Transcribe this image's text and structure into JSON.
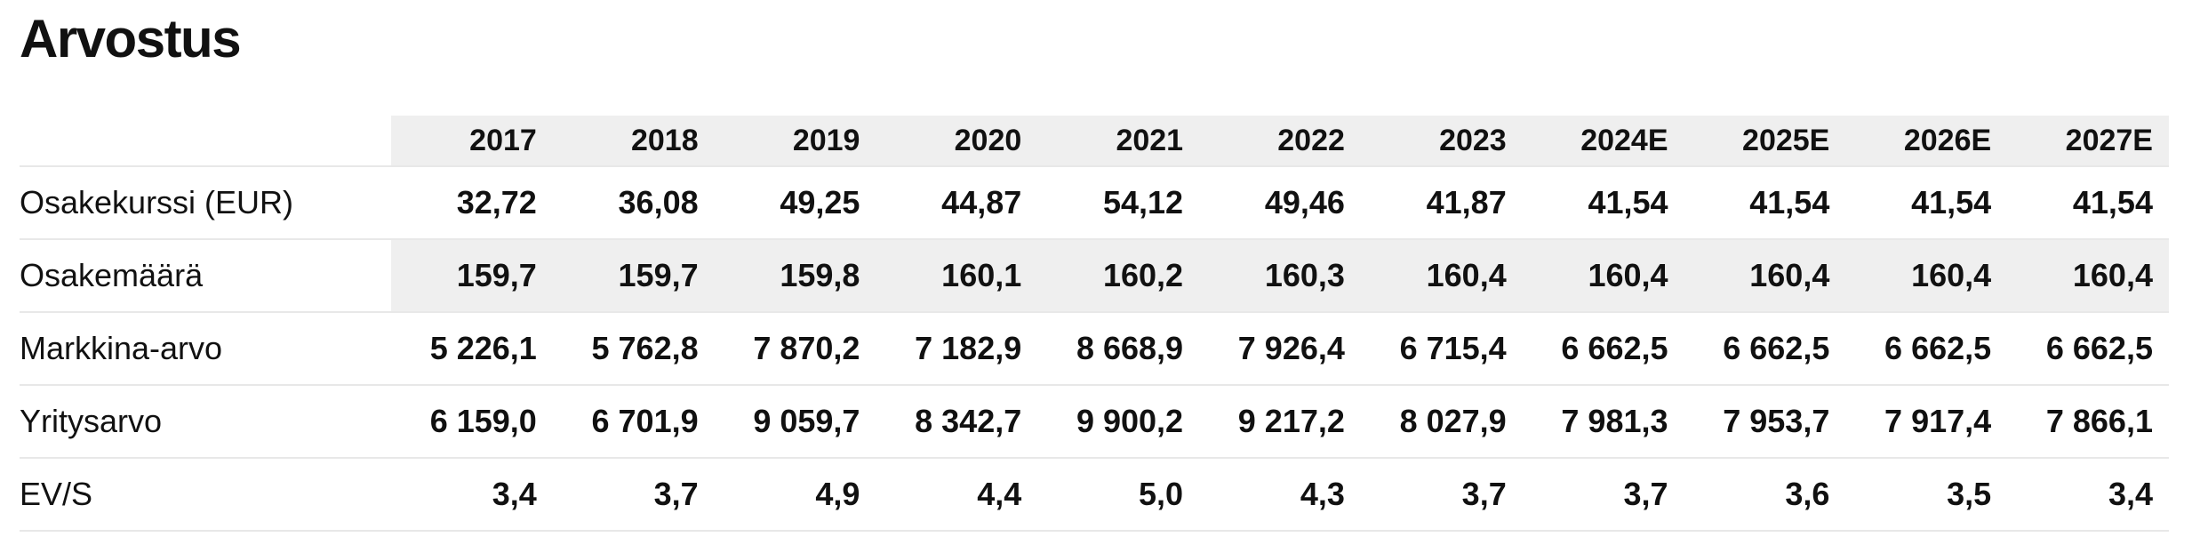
{
  "chart_data": {
    "type": "table",
    "title": "Arvostus",
    "categories": [
      "2017",
      "2018",
      "2019",
      "2020",
      "2021",
      "2022",
      "2023",
      "2024E",
      "2025E",
      "2026E",
      "2027E"
    ],
    "rows": [
      {
        "label": "Osakekurssi (EUR)",
        "highlighted": false,
        "values": [
          "32,72",
          "36,08",
          "49,25",
          "44,87",
          "54,12",
          "49,46",
          "41,87",
          "41,54",
          "41,54",
          "41,54",
          "41,54"
        ]
      },
      {
        "label": "Osakemäärä",
        "highlighted": true,
        "values": [
          "159,7",
          "159,7",
          "159,8",
          "160,1",
          "160,2",
          "160,3",
          "160,4",
          "160,4",
          "160,4",
          "160,4",
          "160,4"
        ]
      },
      {
        "label": "Markkina-arvo",
        "highlighted": false,
        "values": [
          "5 226,1",
          "5 762,8",
          "7 870,2",
          "7 182,9",
          "8 668,9",
          "7 926,4",
          "6 715,4",
          "6 662,5",
          "6 662,5",
          "6 662,5",
          "6 662,5"
        ]
      },
      {
        "label": "Yritysarvo",
        "highlighted": false,
        "values": [
          "6 159,0",
          "6 701,9",
          "9 059,7",
          "8 342,7",
          "9 900,2",
          "9 217,2",
          "8 027,9",
          "7 981,3",
          "7 953,7",
          "7 917,4",
          "7 866,1"
        ]
      },
      {
        "label": "EV/S",
        "highlighted": false,
        "values": [
          "3,4",
          "3,7",
          "4,9",
          "4,4",
          "5,0",
          "4,3",
          "3,7",
          "3,7",
          "3,6",
          "3,5",
          "3,4"
        ]
      }
    ],
    "layout": {
      "header_background": "#efefef",
      "highlight_row_background": "#efefef",
      "row_divider_color": "#e8e8e8",
      "value_alignment": "right"
    }
  },
  "colors": {
    "header_bg": "#efefef",
    "highlight_bg": "#efefef",
    "border": "#e8e8e8",
    "text": "#111111"
  }
}
